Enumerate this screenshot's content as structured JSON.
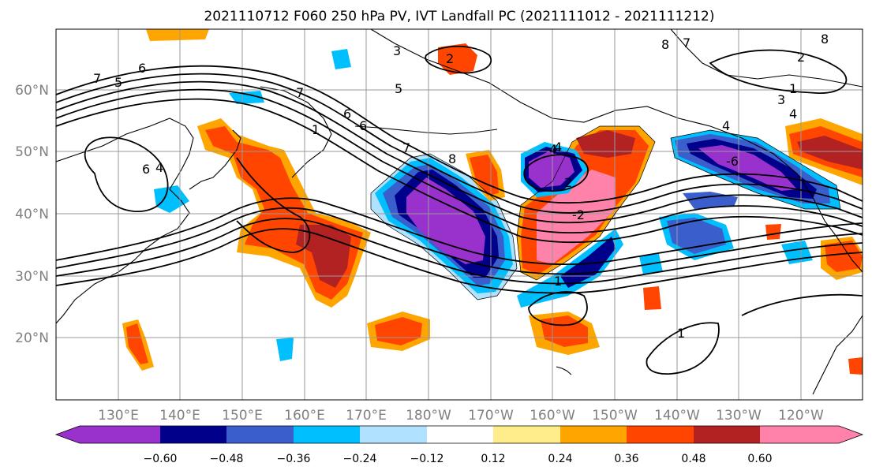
{
  "title": "2021110712 F060 250 hPa PV, IVT Landfall PC (2021111012 - 2021111212)",
  "map": {
    "lat_labels": [
      "60°N",
      "50°N",
      "40°N",
      "30°N",
      "20°N"
    ],
    "lon_labels": [
      "130°E",
      "140°E",
      "150°E",
      "160°E",
      "170°E",
      "180°W",
      "170°W",
      "160°W",
      "150°W",
      "140°W",
      "130°W",
      "120°W"
    ],
    "gridlines": true,
    "contour_labels": [
      "2",
      "4",
      "8",
      "6",
      "4",
      "6",
      "1",
      "6",
      "5",
      "8",
      "7",
      "6",
      "7",
      "3",
      "5",
      "2",
      "7",
      "8",
      "7",
      "4",
      "1",
      "3",
      "4",
      "2",
      "1",
      "1",
      "-2",
      "-4",
      "-6"
    ]
  },
  "colorbar": {
    "tick_labels": [
      "−0.60",
      "−0.48",
      "−0.36",
      "−0.24",
      "−0.12",
      "0.12",
      "0.24",
      "0.36",
      "0.48",
      "0.60"
    ],
    "colors": [
      "#9932cc",
      "#00008b",
      "#3a5fcd",
      "#00bfff",
      "#b0e2ff",
      "#ffffff",
      "#ffec8b",
      "#ffa500",
      "#ff4500",
      "#b22222",
      "#ff82ab"
    ]
  },
  "colors": {
    "purple": "#9932cc",
    "navy": "#00008b",
    "blue": "#3a5fcd",
    "cyan": "#00bfff",
    "light_blue": "#b0e2ff",
    "yellow": "#ffec8b",
    "orange": "#ffa500",
    "red_orange": "#ff4500",
    "dark_red": "#b22222",
    "pink": "#ff82ab"
  }
}
